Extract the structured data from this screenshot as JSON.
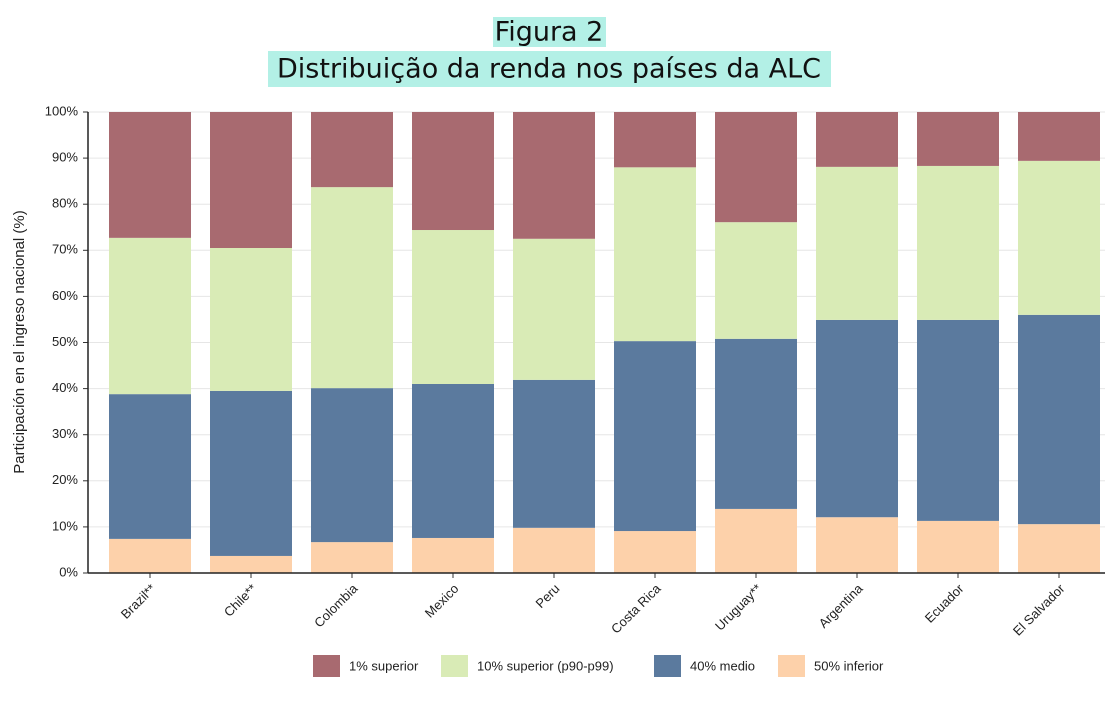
{
  "chart_data": {
    "type": "stacked_bar",
    "title": "Figura 2",
    "subtitle": "Distribuição da renda nos países da ALC",
    "y_label": "Participación en el ingreso nacional (%)",
    "categories": [
      "Brazil**",
      "Chile**",
      "Colombia",
      "Mexico",
      "Peru",
      "Costa Rica",
      "Uruguay**",
      "Argentina",
      "Ecuador",
      "El Salvador"
    ],
    "series": [
      {
        "name": "50% inferior",
        "color": "#fdd1aa",
        "values": [
          7.4,
          3.7,
          6.7,
          7.6,
          9.8,
          9.1,
          13.9,
          12.1,
          11.3,
          10.6
        ]
      },
      {
        "name": "40% medio",
        "color": "#5b7a9e",
        "values": [
          31.4,
          35.8,
          33.4,
          33.4,
          32.1,
          41.2,
          36.9,
          42.8,
          43.6,
          45.4
        ]
      },
      {
        "name": "10% superior (p90-p99)",
        "color": "#d9ebb6",
        "values": [
          33.9,
          31.0,
          43.6,
          33.4,
          30.6,
          37.7,
          25.3,
          33.2,
          33.4,
          33.4
        ]
      },
      {
        "name": "1% superior",
        "color": "#a86a70",
        "values": [
          27.3,
          29.5,
          16.3,
          25.6,
          27.5,
          12.0,
          23.9,
          11.9,
          11.7,
          10.6
        ]
      }
    ],
    "legend_order": [
      3,
      2,
      1,
      0
    ],
    "ylim": [
      0,
      100
    ],
    "yticks": [
      {
        "value": 0,
        "label": "0%"
      },
      {
        "value": 10,
        "label": "10%"
      },
      {
        "value": 20,
        "label": "20%"
      },
      {
        "value": 30,
        "label": "30%"
      },
      {
        "value": 40,
        "label": "40%"
      },
      {
        "value": 50,
        "label": "50%"
      },
      {
        "value": 60,
        "label": "60%"
      },
      {
        "value": 70,
        "label": "70%"
      },
      {
        "value": 80,
        "label": "80%"
      },
      {
        "value": 90,
        "label": "90%"
      },
      {
        "value": 100,
        "label": "100%"
      }
    ],
    "grid": true,
    "legend": "bottom"
  }
}
